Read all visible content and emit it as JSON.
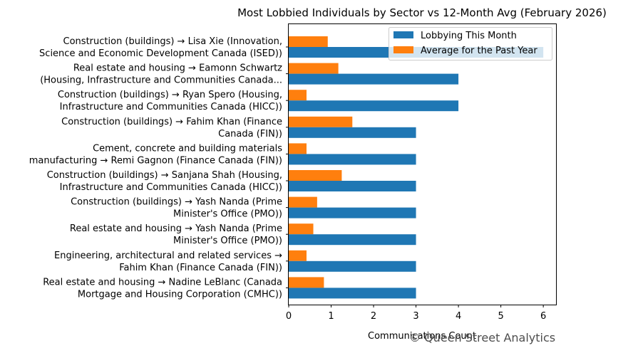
{
  "chart_data": {
    "type": "bar",
    "orientation": "horizontal",
    "title": "Most Lobbied Individuals by Sector vs 12-Month Avg (February 2026)",
    "xlabel": "Communications Count",
    "ylabel": "",
    "xlim": [
      0,
      6.3
    ],
    "xticks": [
      0,
      1,
      2,
      3,
      4,
      5,
      6
    ],
    "grid": false,
    "legend_position": "top-right",
    "categories": [
      [
        "Construction (buildings) → Lisa Xie (Innovation,",
        "Science and Economic Development Canada (ISED))"
      ],
      [
        "Real estate and housing → Eamonn Schwartz",
        "(Housing, Infrastructure and Communities Canada..."
      ],
      [
        "Construction (buildings) → Ryan Spero (Housing,",
        "Infrastructure and Communities Canada (HICC))"
      ],
      [
        "Construction (buildings) → Fahim Khan (Finance",
        "Canada (FIN))"
      ],
      [
        "Cement, concrete and building materials",
        "manufacturing → Remi Gagnon (Finance Canada (FIN))"
      ],
      [
        "Construction (buildings) → Sanjana Shah (Housing,",
        "Infrastructure and Communities Canada (HICC))"
      ],
      [
        "Construction (buildings) → Yash Nanda (Prime",
        "Minister's Office (PMO))"
      ],
      [
        "Real estate and housing → Yash Nanda (Prime",
        "Minister's Office (PMO))"
      ],
      [
        "Engineering, architectural and related services →",
        "Fahim Khan (Finance Canada (FIN))"
      ],
      [
        "Real estate and housing → Nadine LeBlanc (Canada",
        "Mortgage and Housing Corporation (CMHC))"
      ]
    ],
    "series": [
      {
        "name": "Lobbying This Month",
        "color": "#1f77b4",
        "values": [
          6,
          4,
          4,
          3,
          3,
          3,
          3,
          3,
          3,
          3
        ]
      },
      {
        "name": "Average for the Past Year",
        "color": "#ff7f0e",
        "values": [
          0.92,
          1.17,
          0.42,
          1.5,
          0.42,
          1.25,
          0.67,
          0.58,
          0.42,
          0.83
        ]
      }
    ]
  },
  "watermark": "© Queen Street Analytics"
}
